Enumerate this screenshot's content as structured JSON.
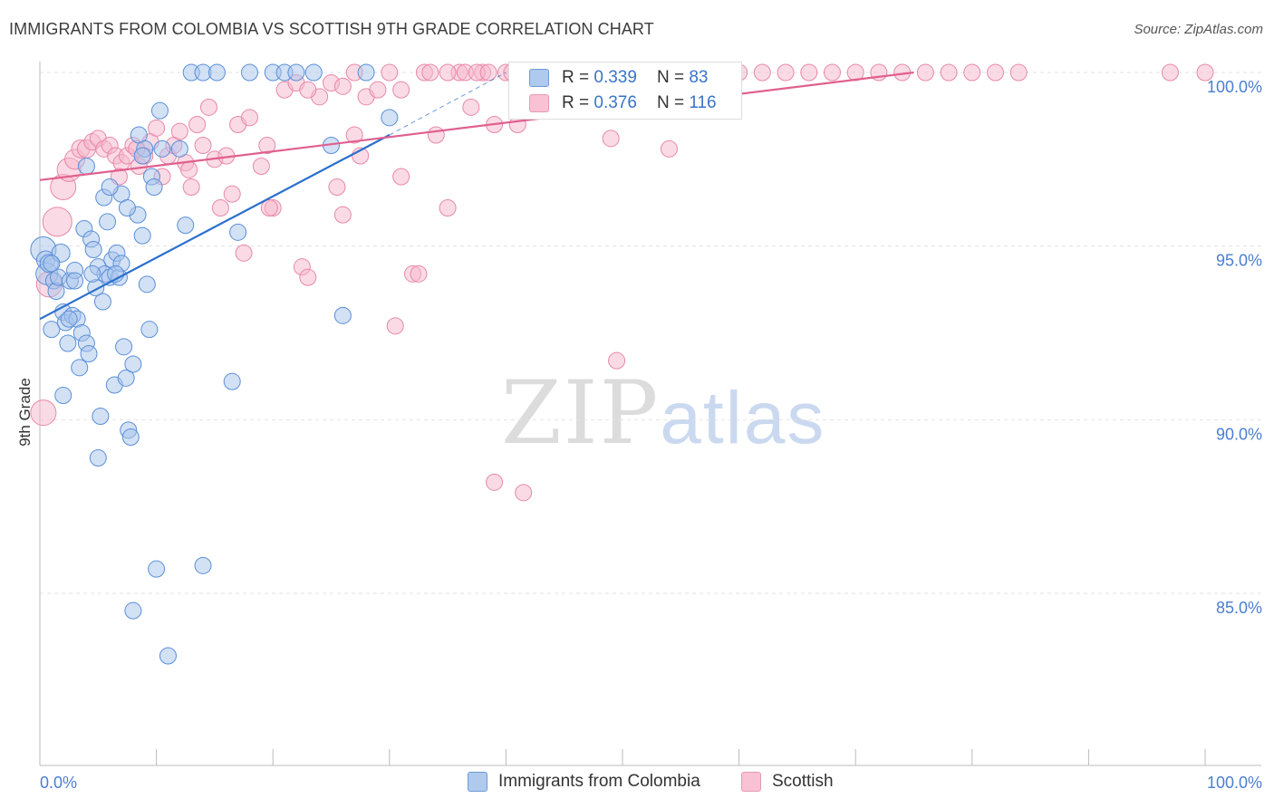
{
  "title": "IMMIGRANTS FROM COLOMBIA VS SCOTTISH 9TH GRADE CORRELATION CHART",
  "source": "Source: ZipAtlas.com",
  "watermark": {
    "zip": "ZIP",
    "atlas": "atlas"
  },
  "legend": {
    "r_label": "R =",
    "n_label": "N =",
    "series1": {
      "r": "0.339",
      "n": "83"
    },
    "series2": {
      "r": "0.376",
      "n": "116"
    }
  },
  "colors": {
    "blue_fill": "#a8c4ec",
    "blue_stroke": "#5a8fd8",
    "blue_line": "#2a6fce",
    "pink_fill": "#f6b8cc",
    "pink_stroke": "#e888a8",
    "pink_line": "#e0608e"
  },
  "chart_data": {
    "type": "scatter",
    "title": "IMMIGRANTS FROM COLOMBIA VS SCOTTISH 9TH GRADE CORRELATION CHART",
    "xlabel": "",
    "ylabel": "9th Grade",
    "xlim": [
      0,
      100
    ],
    "ylim": [
      80.5,
      100.5
    ],
    "x_tick_labels": [
      "0.0%",
      "100.0%"
    ],
    "y_ticks": [
      85,
      90,
      95,
      100
    ],
    "y_tick_labels": [
      "85.0%",
      "90.0%",
      "95.0%",
      "100.0%"
    ],
    "grid": true,
    "legend": [
      "Immigrants from Colombia",
      "Scottish"
    ],
    "series": [
      {
        "name": "Immigrants from Colombia",
        "r": 0.339,
        "n": 83,
        "trend": {
          "x": [
            0,
            30
          ],
          "y": [
            92.9,
            98.2
          ],
          "dashed_to": [
            40,
            100.0
          ]
        },
        "points": [
          [
            0.3,
            94.9,
            14
          ],
          [
            0.5,
            94.6,
            10
          ],
          [
            0.6,
            94.2,
            12
          ],
          [
            0.8,
            94.5,
            10
          ],
          [
            1.0,
            92.6,
            9
          ],
          [
            1.2,
            94.0,
            9
          ],
          [
            1.4,
            93.7,
            9
          ],
          [
            1.6,
            94.1,
            9
          ],
          [
            1.8,
            94.8,
            10
          ],
          [
            2.0,
            93.1,
            9
          ],
          [
            2.2,
            92.8,
            9
          ],
          [
            2.4,
            92.2,
            9
          ],
          [
            2.6,
            94.0,
            9
          ],
          [
            2.8,
            93.0,
            9
          ],
          [
            3.0,
            94.3,
            9
          ],
          [
            3.2,
            92.9,
            9
          ],
          [
            3.4,
            91.5,
            9
          ],
          [
            3.6,
            92.5,
            9
          ],
          [
            3.8,
            95.5,
            9
          ],
          [
            4.0,
            92.2,
            9
          ],
          [
            4.2,
            91.9,
            9
          ],
          [
            4.4,
            95.2,
            9
          ],
          [
            4.6,
            94.9,
            9
          ],
          [
            4.8,
            93.8,
            9
          ],
          [
            5.0,
            94.4,
            9
          ],
          [
            5.2,
            90.1,
            9
          ],
          [
            5.4,
            93.4,
            9
          ],
          [
            5.6,
            94.2,
            9
          ],
          [
            5.8,
            95.7,
            9
          ],
          [
            6.0,
            94.1,
            9
          ],
          [
            6.2,
            94.6,
            9
          ],
          [
            6.4,
            91.0,
            9
          ],
          [
            6.6,
            94.8,
            9
          ],
          [
            6.8,
            94.1,
            9
          ],
          [
            7.0,
            96.5,
            9
          ],
          [
            7.2,
            92.1,
            9
          ],
          [
            7.4,
            91.2,
            9
          ],
          [
            7.6,
            89.7,
            9
          ],
          [
            7.8,
            89.5,
            9
          ],
          [
            8.0,
            91.6,
            9
          ],
          [
            8.4,
            95.9,
            9
          ],
          [
            8.8,
            95.3,
            9
          ],
          [
            9.2,
            93.9,
            9
          ],
          [
            9.4,
            92.6,
            9
          ],
          [
            9.6,
            97.0,
            9
          ],
          [
            9.8,
            96.7,
            9
          ],
          [
            10.0,
            85.7,
            9
          ],
          [
            10.5,
            97.8,
            9
          ],
          [
            11.0,
            83.2,
            9
          ],
          [
            12.5,
            95.6,
            9
          ],
          [
            13.0,
            100.0,
            9
          ],
          [
            14.0,
            100.0,
            9
          ],
          [
            15.2,
            100.0,
            9
          ],
          [
            17.0,
            95.4,
            9
          ],
          [
            20.0,
            100.0,
            9
          ],
          [
            21.0,
            100.0,
            9
          ],
          [
            23.5,
            100.0,
            9
          ],
          [
            25.0,
            97.9,
            9
          ],
          [
            28.0,
            100.0,
            9
          ],
          [
            30.0,
            98.7,
            9
          ],
          [
            26.0,
            93.0,
            9
          ],
          [
            16.5,
            91.1,
            9
          ],
          [
            14.0,
            85.8,
            9
          ],
          [
            8.0,
            84.5,
            9
          ],
          [
            5.0,
            88.9,
            9
          ],
          [
            2.0,
            90.7,
            9
          ],
          [
            4.0,
            97.3,
            9
          ],
          [
            5.5,
            96.4,
            9
          ],
          [
            6.0,
            96.7,
            9
          ],
          [
            7.5,
            96.1,
            9
          ],
          [
            8.5,
            98.2,
            9
          ],
          [
            9.0,
            97.8,
            9
          ],
          [
            10.3,
            98.9,
            9
          ],
          [
            12.0,
            97.8,
            9
          ],
          [
            8.8,
            97.6,
            9
          ],
          [
            1.0,
            94.5,
            9
          ],
          [
            3.0,
            94.0,
            9
          ],
          [
            7.0,
            94.5,
            9
          ],
          [
            4.5,
            94.2,
            9
          ],
          [
            2.5,
            92.9,
            9
          ],
          [
            6.5,
            94.2,
            9
          ],
          [
            22.0,
            100.0,
            9
          ],
          [
            18.0,
            100.0,
            9
          ]
        ]
      },
      {
        "name": "Scottish",
        "r": 0.376,
        "n": 116,
        "trend": {
          "x": [
            0,
            75
          ],
          "y": [
            96.9,
            100.0
          ]
        },
        "points": [
          [
            0.3,
            90.2,
            14
          ],
          [
            0.8,
            93.9,
            14
          ],
          [
            1.5,
            95.7,
            16
          ],
          [
            2.0,
            96.7,
            14
          ],
          [
            2.5,
            97.2,
            13
          ],
          [
            3.0,
            97.5,
            11
          ],
          [
            3.5,
            97.8,
            10
          ],
          [
            4.0,
            97.8,
            10
          ],
          [
            4.5,
            98.0,
            9
          ],
          [
            5.0,
            98.1,
            9
          ],
          [
            5.5,
            97.8,
            9
          ],
          [
            6.0,
            97.9,
            9
          ],
          [
            6.5,
            97.6,
            9
          ],
          [
            7.0,
            97.4,
            9
          ],
          [
            7.5,
            97.6,
            9
          ],
          [
            8.0,
            97.9,
            9
          ],
          [
            8.5,
            97.3,
            9
          ],
          [
            9.0,
            97.6,
            9
          ],
          [
            9.5,
            98.0,
            9
          ],
          [
            10.0,
            98.4,
            9
          ],
          [
            10.5,
            97.0,
            9
          ],
          [
            11.0,
            97.6,
            9
          ],
          [
            11.5,
            97.9,
            9
          ],
          [
            12.0,
            98.3,
            9
          ],
          [
            12.5,
            97.4,
            9
          ],
          [
            13.0,
            96.7,
            9
          ],
          [
            13.5,
            98.5,
            9
          ],
          [
            14.0,
            97.9,
            9
          ],
          [
            14.5,
            99.0,
            9
          ],
          [
            15.0,
            97.5,
            9
          ],
          [
            15.5,
            96.1,
            9
          ],
          [
            16.0,
            97.6,
            9
          ],
          [
            16.5,
            96.5,
            9
          ],
          [
            17.0,
            98.5,
            9
          ],
          [
            18.0,
            98.7,
            9
          ],
          [
            19.0,
            97.3,
            9
          ],
          [
            19.5,
            97.9,
            9
          ],
          [
            20.0,
            96.1,
            9
          ],
          [
            21.0,
            99.5,
            9
          ],
          [
            22.0,
            99.7,
            9
          ],
          [
            22.5,
            94.4,
            9
          ],
          [
            23.0,
            94.1,
            9
          ],
          [
            24.0,
            99.3,
            9
          ],
          [
            25.0,
            99.7,
            9
          ],
          [
            25.5,
            96.7,
            9
          ],
          [
            26.0,
            95.9,
            9
          ],
          [
            27.0,
            98.2,
            9
          ],
          [
            28.0,
            99.3,
            9
          ],
          [
            29.0,
            99.5,
            9
          ],
          [
            30.0,
            100.0,
            9
          ],
          [
            31.0,
            99.5,
            9
          ],
          [
            32.0,
            94.2,
            9
          ],
          [
            32.5,
            94.2,
            9
          ],
          [
            33.0,
            100.0,
            9
          ],
          [
            34.0,
            98.2,
            9
          ],
          [
            35.0,
            96.1,
            9
          ],
          [
            36.0,
            100.0,
            9
          ],
          [
            37.0,
            99.0,
            9
          ],
          [
            38.0,
            100.0,
            9
          ],
          [
            39.0,
            98.5,
            9
          ],
          [
            40.0,
            100.0,
            9
          ],
          [
            41.0,
            100.0,
            9
          ],
          [
            42.0,
            100.0,
            9
          ],
          [
            43.0,
            100.0,
            9
          ],
          [
            44.0,
            100.0,
            9
          ],
          [
            45.0,
            100.0,
            9
          ],
          [
            46.0,
            100.0,
            9
          ],
          [
            47.0,
            100.0,
            9
          ],
          [
            48.0,
            100.0,
            9
          ],
          [
            49.0,
            100.0,
            9
          ],
          [
            50.0,
            100.0,
            9
          ],
          [
            52.0,
            100.0,
            9
          ],
          [
            54.0,
            100.0,
            9
          ],
          [
            56.0,
            100.0,
            9
          ],
          [
            58.0,
            100.0,
            9
          ],
          [
            60.0,
            100.0,
            9
          ],
          [
            62.0,
            100.0,
            9
          ],
          [
            64.0,
            100.0,
            9
          ],
          [
            66.0,
            100.0,
            9
          ],
          [
            68.0,
            100.0,
            9
          ],
          [
            70.0,
            100.0,
            9
          ],
          [
            72.0,
            100.0,
            9
          ],
          [
            74.0,
            100.0,
            9
          ],
          [
            76.0,
            100.0,
            9
          ],
          [
            78.0,
            100.0,
            9
          ],
          [
            80.0,
            100.0,
            9
          ],
          [
            82.0,
            100.0,
            9
          ],
          [
            84.0,
            100.0,
            9
          ],
          [
            100.0,
            100.0,
            9
          ],
          [
            97.0,
            100.0,
            9
          ],
          [
            54.0,
            97.8,
            9
          ],
          [
            49.0,
            98.1,
            9
          ],
          [
            41.0,
            98.5,
            9
          ],
          [
            31.0,
            97.0,
            9
          ],
          [
            27.5,
            97.6,
            9
          ],
          [
            30.5,
            92.7,
            9
          ],
          [
            39.0,
            88.2,
            9
          ],
          [
            41.5,
            87.9,
            9
          ],
          [
            49.5,
            91.7,
            9
          ],
          [
            17.5,
            94.8,
            9
          ],
          [
            23.0,
            99.5,
            9
          ],
          [
            26.0,
            99.6,
            9
          ],
          [
            27.0,
            100.0,
            9
          ],
          [
            33.5,
            100.0,
            9
          ],
          [
            35.0,
            100.0,
            9
          ],
          [
            36.5,
            100.0,
            9
          ],
          [
            37.5,
            100.0,
            9
          ],
          [
            38.5,
            100.0,
            9
          ],
          [
            40.5,
            100.0,
            9
          ],
          [
            42.5,
            100.0,
            9
          ],
          [
            44.5,
            100.0,
            9
          ],
          [
            46.5,
            100.0,
            9
          ],
          [
            12.8,
            97.2,
            9
          ],
          [
            8.3,
            97.8,
            9
          ],
          [
            6.8,
            97.0,
            9
          ],
          [
            19.7,
            96.1,
            9
          ]
        ]
      }
    ]
  }
}
